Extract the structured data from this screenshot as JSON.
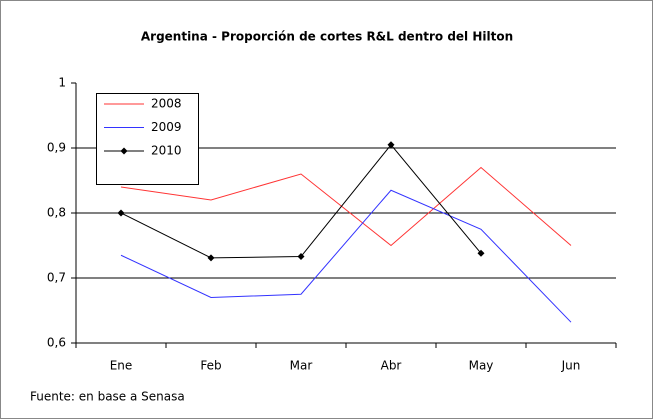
{
  "chart_data": {
    "type": "line",
    "title": "Argentina - Proporción de cortes R&L dentro del Hilton",
    "source": "Fuente: en base a Senasa",
    "categories": [
      "Ene",
      "Feb",
      "Mar",
      "Abr",
      "May",
      "Jun"
    ],
    "series": [
      {
        "name": "2008",
        "color": "#ff3333",
        "values": [
          0.84,
          0.82,
          0.86,
          0.75,
          0.87,
          0.75
        ]
      },
      {
        "name": "2009",
        "color": "#3333ff",
        "values": [
          0.735,
          0.67,
          0.675,
          0.835,
          0.775,
          0.632
        ]
      },
      {
        "name": "2010",
        "color": "#000000",
        "marker": "diamond",
        "values": [
          0.8,
          0.731,
          0.733,
          0.905,
          0.738,
          null
        ]
      }
    ],
    "ylim": [
      0.6,
      1
    ],
    "yticks": [
      {
        "value": 0.6,
        "label": "0,6"
      },
      {
        "value": 0.7,
        "label": "0,7"
      },
      {
        "value": 0.8,
        "label": "0,8"
      },
      {
        "value": 0.9,
        "label": "0,9"
      },
      1
    ],
    "grid": true,
    "legend": "upper left"
  }
}
